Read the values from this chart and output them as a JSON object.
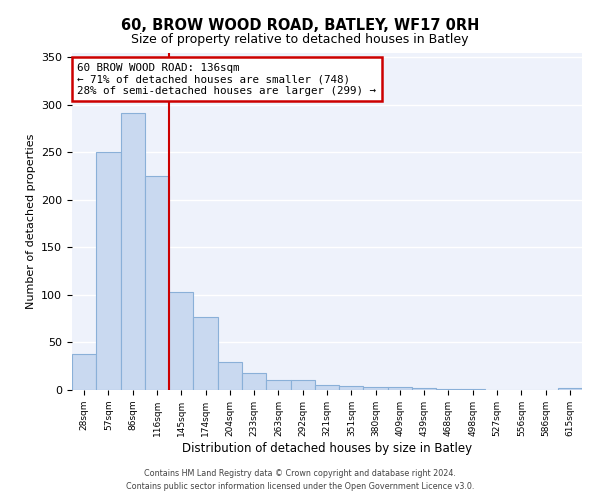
{
  "title": "60, BROW WOOD ROAD, BATLEY, WF17 0RH",
  "subtitle": "Size of property relative to detached houses in Batley",
  "xlabel": "Distribution of detached houses by size in Batley",
  "ylabel": "Number of detached properties",
  "bar_color": "#c9d9f0",
  "bar_edge_color": "#8ab0d8",
  "background_color": "#eef2fb",
  "grid_color": "#ffffff",
  "categories": [
    "28sqm",
    "57sqm",
    "86sqm",
    "116sqm",
    "145sqm",
    "174sqm",
    "204sqm",
    "233sqm",
    "263sqm",
    "292sqm",
    "321sqm",
    "351sqm",
    "380sqm",
    "409sqm",
    "439sqm",
    "468sqm",
    "498sqm",
    "527sqm",
    "556sqm",
    "586sqm",
    "615sqm"
  ],
  "values": [
    38,
    250,
    291,
    225,
    103,
    77,
    29,
    18,
    10,
    10,
    5,
    4,
    3,
    3,
    2,
    1,
    1,
    0,
    0,
    0,
    2
  ],
  "vline_x": 3.5,
  "vline_color": "#cc0000",
  "annotation_title": "60 BROW WOOD ROAD: 136sqm",
  "annotation_line1": "← 71% of detached houses are smaller (748)",
  "annotation_line2": "28% of semi-detached houses are larger (299) →",
  "annotation_box_edge": "#cc0000",
  "ylim": [
    0,
    355
  ],
  "yticks": [
    0,
    50,
    100,
    150,
    200,
    250,
    300,
    350
  ],
  "footer1": "Contains HM Land Registry data © Crown copyright and database right 2024.",
  "footer2": "Contains public sector information licensed under the Open Government Licence v3.0."
}
